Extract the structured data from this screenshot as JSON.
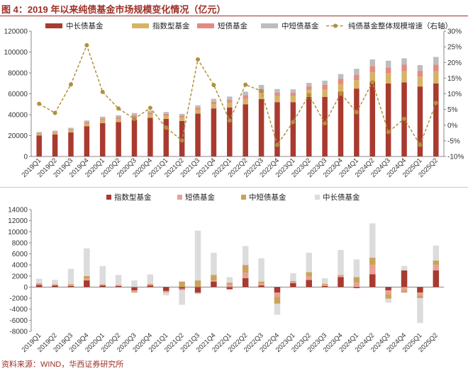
{
  "title": "图 4：2019 年以来纯债基金市场规模变化情况（亿元）",
  "source": "资料来源：WIND，华西证券研究所",
  "colors": {
    "long": "#a93a2f",
    "index": "#d6b464",
    "short": "#e38b83",
    "midshort": "#bdbdbd",
    "growth_line": "#b0913d",
    "delta_long": "#dcdcdc",
    "delta_index": "#a93a2f",
    "delta_short": "#e8a09a",
    "delta_midshort": "#c9a35a",
    "title": "#9e2f27"
  },
  "chart_data": [
    {
      "type": "bar",
      "stacked": true,
      "title": "",
      "categories": [
        "2019Q1",
        "2019Q2",
        "2019Q3",
        "2019Q4",
        "2020Q1",
        "2020Q2",
        "2020Q3",
        "2020Q4",
        "2021Q1",
        "2021Q2",
        "2021Q3",
        "2021Q4",
        "2022Q1",
        "2022Q2",
        "2022Q3",
        "2022Q4",
        "2023Q1",
        "2023Q2",
        "2023Q3",
        "2023Q4",
        "2024Q1",
        "2024Q2",
        "2024Q3",
        "2024Q4",
        "2025Q1",
        "2025Q2"
      ],
      "series": [
        {
          "name": "中长债基金",
          "color_key": "long",
          "values": [
            20000,
            21000,
            23000,
            29000,
            32000,
            33000,
            35000,
            37000,
            36000,
            34000,
            41000,
            46000,
            47000,
            50000,
            55000,
            52000,
            52000,
            57000,
            57000,
            62000,
            65000,
            72000,
            70000,
            71000,
            67000,
            70000
          ]
        },
        {
          "name": "指数型基金",
          "color_key": "index",
          "values": [
            1500,
            1500,
            2000,
            2500,
            2800,
            3000,
            3000,
            3200,
            3000,
            3200,
            3500,
            4000,
            4500,
            5000,
            5500,
            6000,
            6000,
            6500,
            7000,
            7500,
            8000,
            8500,
            9500,
            10500,
            9500,
            11500
          ]
        },
        {
          "name": "短债基金",
          "color_key": "short",
          "values": [
            1000,
            1100,
            1200,
            1500,
            1600,
            1700,
            1800,
            1900,
            1800,
            1800,
            2200,
            2400,
            3000,
            3600,
            4000,
            3000,
            3000,
            3600,
            4600,
            4800,
            5200,
            6100,
            5800,
            6300,
            5500,
            6500
          ]
        },
        {
          "name": "中短债基金",
          "color_key": "midshort",
          "values": [
            1000,
            1100,
            1300,
            1500,
            1700,
            1800,
            1800,
            1900,
            1800,
            1800,
            2300,
            2800,
            2900,
            3500,
            4000,
            3600,
            3300,
            3400,
            4000,
            4600,
            5800,
            6400,
            6400,
            6200,
            5500,
            7300
          ]
        }
      ],
      "line_series": {
        "name": "纯债基金整体规模增速（右轴）",
        "color_key": "growth_line",
        "values": [
          6.8,
          3.9,
          13.0,
          25.5,
          10.6,
          5.3,
          2.0,
          5.5,
          -0.8,
          -4.9,
          21.0,
          12.8,
          1.5,
          12.9,
          10.9,
          -6.3,
          1.0,
          9.6,
          0.6,
          10.1,
          4.1,
          13.7,
          -2.2,
          2.0,
          -6.3,
          7.1
        ]
      },
      "xlabel": "",
      "ylabel": "",
      "ylim": [
        0,
        120000
      ],
      "yticks": [
        "0",
        "20000",
        "40000",
        "60000",
        "80000",
        "100000",
        "120000"
      ],
      "y2lim": [
        -10,
        30
      ],
      "y2ticks": [
        "-10%",
        "-5%",
        "0%",
        "5%",
        "10%",
        "15%",
        "20%",
        "25%",
        "30%"
      ],
      "legend": [
        "中长债基金",
        "指数型基金",
        "短债基金",
        "中短债基金",
        "纯债基金整体规模增速（右轴）"
      ],
      "legend_position": "top",
      "grid": false
    },
    {
      "type": "bar",
      "stacked": true,
      "title": "",
      "categories": [
        "2019Q1",
        "2019Q2",
        "2019Q3",
        "2019Q4",
        "2020Q1",
        "2020Q2",
        "2020Q3",
        "2020Q4",
        "2021Q1",
        "2021Q2",
        "2021Q3",
        "2021Q4",
        "2022Q1",
        "2022Q2",
        "2022Q3",
        "2022Q4",
        "2023Q1",
        "2023Q2",
        "2023Q3",
        "2023Q4",
        "2024Q1",
        "2024Q2",
        "2024Q3",
        "2024Q4",
        "2025Q1",
        "2025Q2"
      ],
      "series": [
        {
          "name": "指数型基金",
          "color_key": "delta_index",
          "values": [
            400,
            300,
            200,
            1200,
            300,
            200,
            -600,
            300,
            -700,
            -300,
            -1000,
            1000,
            -400,
            1600,
            300,
            -1000,
            700,
            1300,
            200,
            1800,
            -200,
            2300,
            -600,
            3000,
            -1000,
            3000
          ]
        },
        {
          "name": "短债基金",
          "color_key": "delta_short",
          "values": [
            200,
            100,
            100,
            300,
            100,
            100,
            -200,
            200,
            -200,
            -300,
            -200,
            200,
            500,
            1000,
            300,
            -800,
            200,
            600,
            200,
            200,
            800,
            1700,
            -700,
            -600,
            -500,
            1000
          ]
        },
        {
          "name": "中短债基金",
          "color_key": "delta_midshort",
          "values": [
            100,
            100,
            200,
            500,
            100,
            100,
            -200,
            100,
            -100,
            1000,
            1200,
            1000,
            300,
            1400,
            400,
            -1200,
            200,
            800,
            200,
            200,
            1000,
            1300,
            -800,
            -400,
            -500,
            800
          ]
        },
        {
          "name": "中长债基金",
          "color_key": "delta_long",
          "values": [
            800,
            800,
            2800,
            5000,
            3300,
            1800,
            1200,
            1700,
            -500,
            -2600,
            9000,
            4000,
            1000,
            3400,
            4200,
            -2000,
            1400,
            3500,
            1000,
            4500,
            3200,
            6200,
            -700,
            800,
            -4500,
            2700
          ]
        }
      ],
      "xlabel": "",
      "ylabel": "",
      "ylim": [
        -8000,
        14000
      ],
      "yticks": [
        "-8000",
        "-6000",
        "-4000",
        "-2000",
        "0",
        "2000",
        "4000",
        "6000",
        "8000",
        "10000",
        "12000",
        "14000"
      ],
      "legend": [
        "指数型基金",
        "短债基金",
        "中短债基金",
        "中长债基金"
      ],
      "legend_position": "top",
      "grid": false
    }
  ]
}
